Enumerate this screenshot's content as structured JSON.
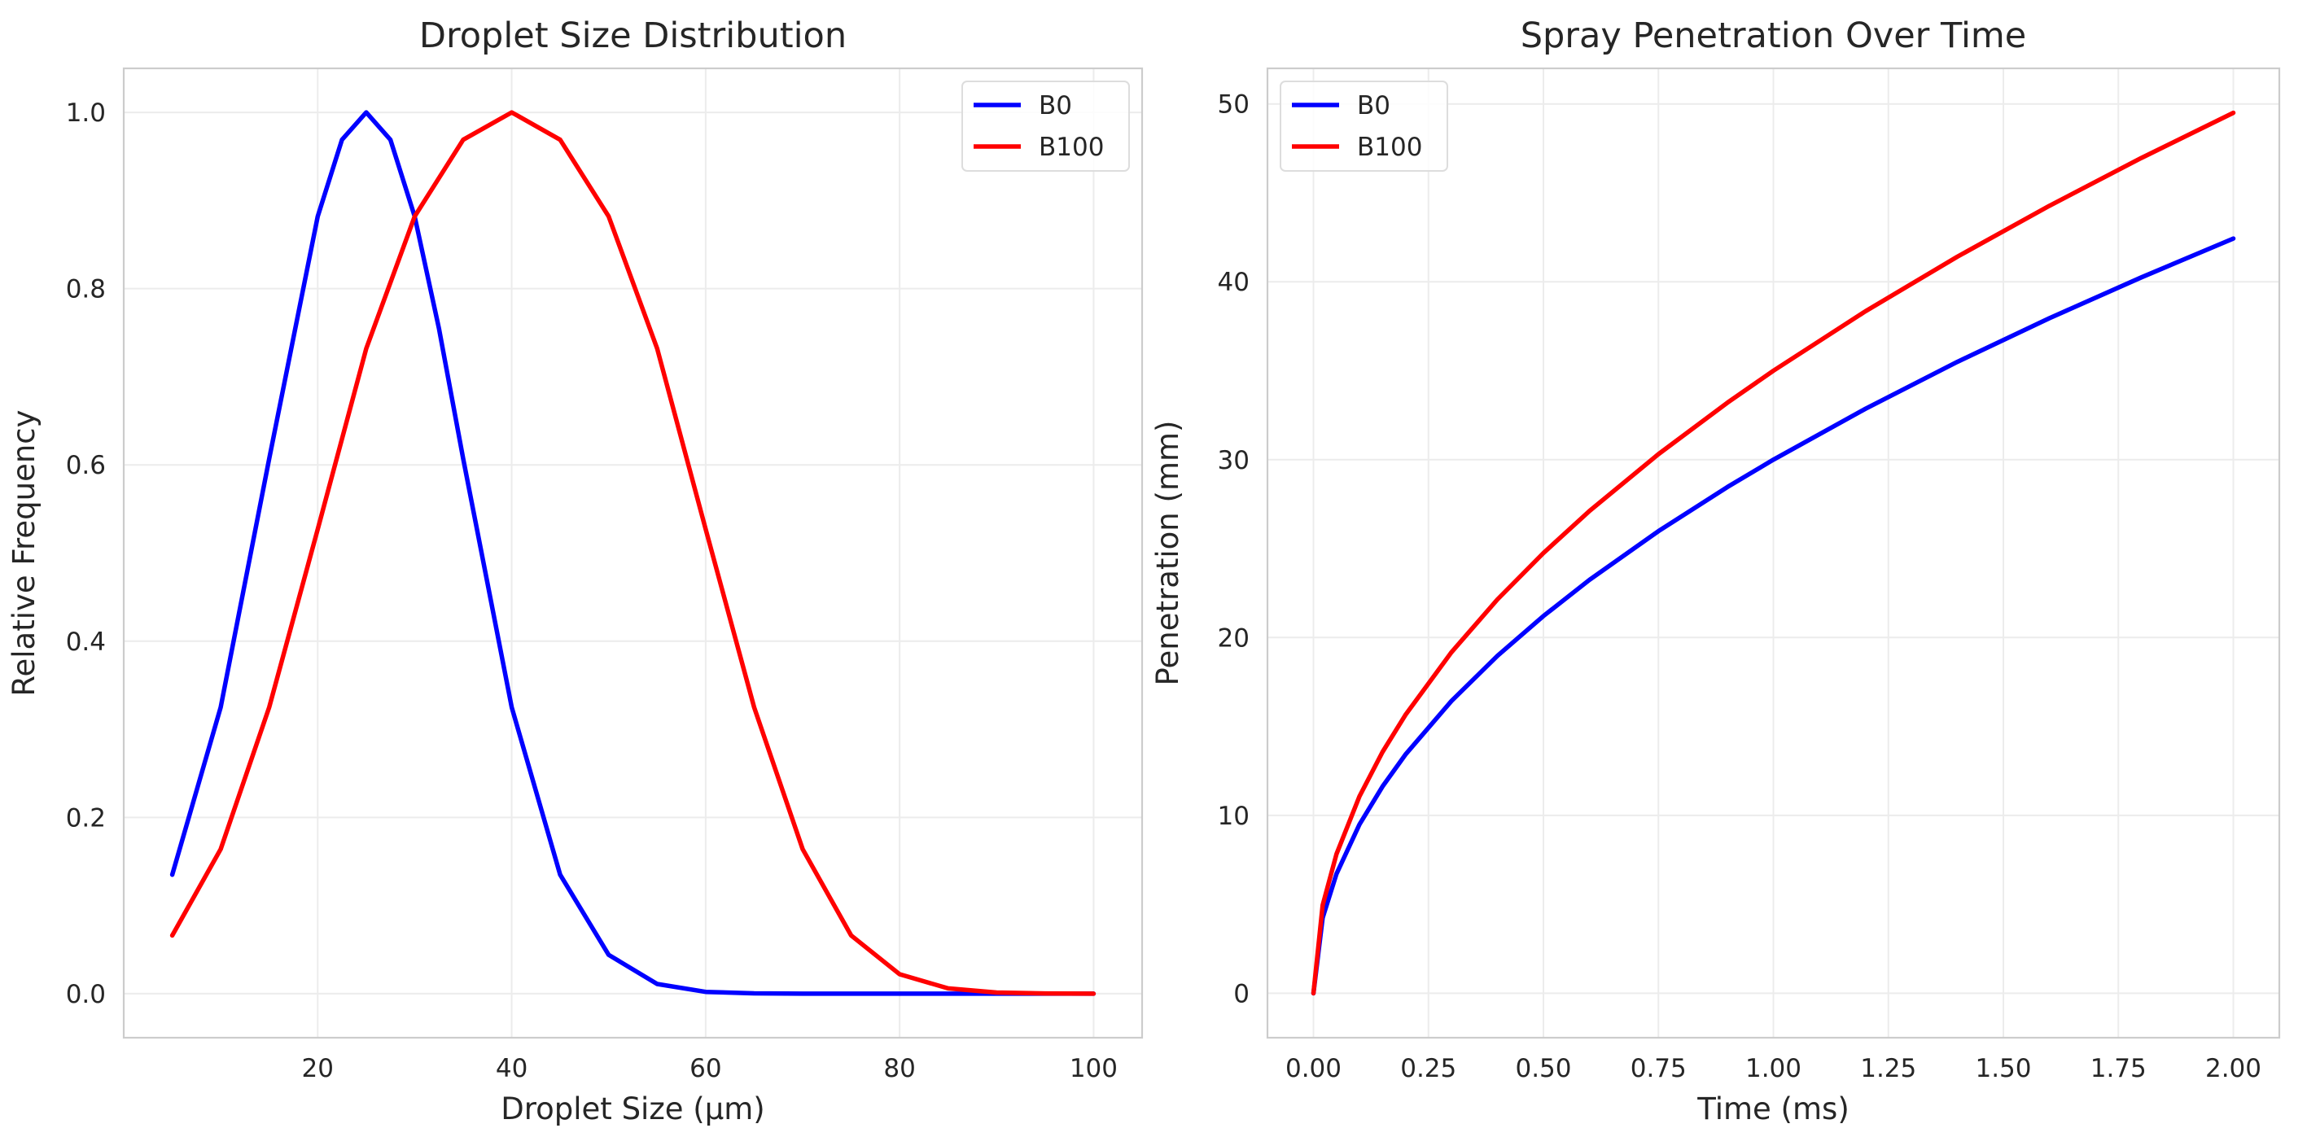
{
  "chart_data": [
    {
      "type": "line",
      "title": "Droplet Size Distribution",
      "xlabel": "Droplet Size (μm)",
      "ylabel": "Relative Frequency",
      "xlim": [
        0,
        105
      ],
      "ylim": [
        -0.05,
        1.05
      ],
      "xticks": [
        20,
        40,
        60,
        80,
        100
      ],
      "xtick_labels": [
        "20",
        "40",
        "60",
        "80",
        "100"
      ],
      "yticks": [
        0.0,
        0.2,
        0.4,
        0.6,
        0.8,
        1.0
      ],
      "ytick_labels": [
        "0.0",
        "0.2",
        "0.4",
        "0.6",
        "0.8",
        "1.0"
      ],
      "grid": true,
      "legend_position": "upper right",
      "series": [
        {
          "name": "B0",
          "color": "#0000ff",
          "x": [
            5,
            10,
            15,
            20,
            22.5,
            25,
            27.5,
            30,
            32.5,
            35,
            40,
            45,
            50,
            55,
            60,
            65,
            70,
            80,
            90,
            100
          ],
          "y": [
            0.135,
            0.325,
            0.607,
            0.882,
            0.969,
            1.0,
            0.969,
            0.882,
            0.755,
            0.607,
            0.325,
            0.135,
            0.044,
            0.011,
            0.002,
            0.0003,
            0.0,
            0.0,
            0.0,
            0.0
          ]
        },
        {
          "name": "B100",
          "color": "#ff0000",
          "x": [
            5,
            10,
            15,
            20,
            25,
            30,
            35,
            40,
            45,
            50,
            55,
            60,
            65,
            70,
            75,
            80,
            85,
            90,
            95,
            100
          ],
          "y": [
            0.066,
            0.164,
            0.325,
            0.527,
            0.732,
            0.882,
            0.969,
            1.0,
            0.969,
            0.882,
            0.732,
            0.527,
            0.325,
            0.164,
            0.066,
            0.022,
            0.006,
            0.0013,
            0.0002,
            0.0
          ]
        }
      ]
    },
    {
      "type": "line",
      "title": "Spray Penetration Over Time",
      "xlabel": "Time (ms)",
      "ylabel": "Penetration (mm)",
      "xlim": [
        -0.1,
        2.1
      ],
      "ylim": [
        -2.5,
        52
      ],
      "xticks": [
        0.0,
        0.25,
        0.5,
        0.75,
        1.0,
        1.25,
        1.5,
        1.75,
        2.0
      ],
      "xtick_labels": [
        "0.00",
        "0.25",
        "0.50",
        "0.75",
        "1.00",
        "1.25",
        "1.50",
        "1.75",
        "2.00"
      ],
      "yticks": [
        0,
        10,
        20,
        30,
        40,
        50
      ],
      "ytick_labels": [
        "0",
        "10",
        "20",
        "30",
        "40",
        "50"
      ],
      "grid": true,
      "legend_position": "upper left",
      "series": [
        {
          "name": "B0",
          "color": "#0000ff",
          "x": [
            0,
            0.02,
            0.05,
            0.1,
            0.15,
            0.2,
            0.3,
            0.4,
            0.5,
            0.6,
            0.75,
            0.9,
            1.0,
            1.2,
            1.4,
            1.6,
            1.8,
            2.0
          ],
          "y": [
            0,
            4.24,
            6.71,
            9.49,
            11.62,
            13.42,
            16.43,
            18.97,
            21.21,
            23.24,
            25.98,
            28.46,
            30.0,
            32.86,
            35.5,
            37.95,
            40.25,
            42.43
          ]
        },
        {
          "name": "B100",
          "color": "#ff0000",
          "x": [
            0,
            0.02,
            0.05,
            0.1,
            0.15,
            0.2,
            0.3,
            0.4,
            0.5,
            0.6,
            0.75,
            0.9,
            1.0,
            1.2,
            1.4,
            1.6,
            1.8,
            2.0
          ],
          "y": [
            0,
            4.95,
            7.83,
            11.07,
            13.56,
            15.65,
            19.17,
            22.14,
            24.75,
            27.11,
            30.31,
            33.2,
            35.0,
            38.34,
            41.41,
            44.27,
            46.96,
            49.5
          ]
        }
      ]
    }
  ]
}
